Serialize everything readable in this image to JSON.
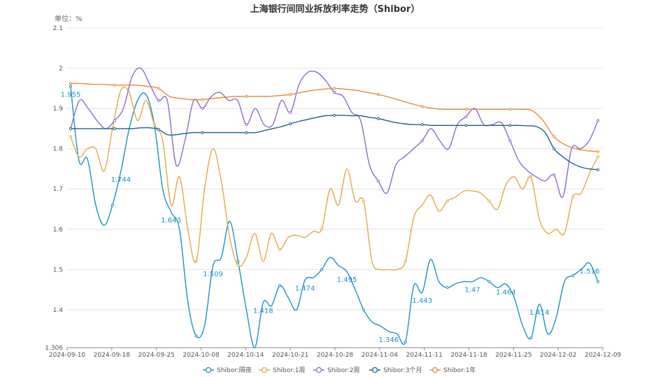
{
  "chart_data": {
    "type": "line",
    "title": "上海银行间同业拆放利率走势（Shibor）",
    "ylabel": "单位：%",
    "ylim": [
      1.306,
      2.1
    ],
    "y_ticks": [
      "1.306",
      "1.4",
      "1.5",
      "1.6",
      "1.7",
      "1.8",
      "1.9",
      "2",
      "2.1"
    ],
    "x_ticks": [
      "2024-09-10",
      "2024-09-18",
      "2024-09-25",
      "2024-10-08",
      "2024-10-14",
      "2024-10-21",
      "2024-10-28",
      "2024-11-04",
      "2024-11-11",
      "2024-11-18",
      "2024-11-25",
      "2024-12-02",
      "2024-12-09"
    ],
    "grid": true,
    "legend_position": "bottom",
    "series": [
      {
        "name": "Shibor:隔夜",
        "color": "#1a93c4",
        "show_labels": true,
        "values": [
          1.955,
          1.77,
          1.775,
          1.66,
          1.61,
          1.66,
          1.744,
          1.85,
          1.92,
          1.935,
          1.86,
          1.7,
          1.643,
          1.6,
          1.42,
          1.335,
          1.36,
          1.509,
          1.53,
          1.62,
          1.52,
          1.4,
          1.306,
          1.418,
          1.41,
          1.46,
          1.43,
          1.4,
          1.474,
          1.48,
          1.5,
          1.53,
          1.51,
          1.495,
          1.45,
          1.4,
          1.37,
          1.36,
          1.346,
          1.34,
          1.32,
          1.46,
          1.443,
          1.525,
          1.47,
          1.455,
          1.465,
          1.47,
          1.47,
          1.48,
          1.47,
          1.455,
          1.464,
          1.43,
          1.36,
          1.33,
          1.414,
          1.34,
          1.38,
          1.47,
          1.485,
          1.5,
          1.516,
          1.47
        ],
        "labels": {
          "0": "1.955",
          "6": "1.744",
          "12": "1.643",
          "17": "1.509",
          "23": "1.418",
          "28": "1.474",
          "33": "1.495",
          "38": "1.346",
          "42": "1.443",
          "48": "1.47",
          "52": "1.464",
          "56": "1.414",
          "62": "1.516"
        }
      },
      {
        "name": "Shibor:1周",
        "color": "#e0ab45",
        "values": [
          1.83,
          1.78,
          1.8,
          1.8,
          1.745,
          1.85,
          1.945,
          1.94,
          1.87,
          1.92,
          1.86,
          1.82,
          1.66,
          1.73,
          1.6,
          1.52,
          1.7,
          1.8,
          1.72,
          1.58,
          1.51,
          1.53,
          1.59,
          1.52,
          1.59,
          1.55,
          1.58,
          1.585,
          1.58,
          1.595,
          1.6,
          1.7,
          1.66,
          1.75,
          1.67,
          1.67,
          1.52,
          1.5,
          1.5,
          1.5,
          1.52,
          1.63,
          1.66,
          1.685,
          1.645,
          1.67,
          1.68,
          1.695,
          1.695,
          1.69,
          1.67,
          1.65,
          1.71,
          1.73,
          1.7,
          1.73,
          1.625,
          1.59,
          1.6,
          1.59,
          1.68,
          1.69,
          1.74,
          1.78
        ]
      },
      {
        "name": "Shibor:2周",
        "color": "#8f6bcc",
        "values": [
          1.85,
          1.92,
          1.9,
          1.87,
          1.85,
          1.87,
          1.9,
          1.98,
          2.0,
          1.96,
          1.92,
          1.92,
          1.76,
          1.82,
          1.92,
          1.9,
          1.93,
          1.94,
          1.92,
          1.92,
          1.86,
          1.9,
          1.86,
          1.86,
          1.92,
          1.89,
          1.96,
          1.99,
          1.99,
          1.97,
          1.94,
          1.93,
          1.89,
          1.87,
          1.76,
          1.72,
          1.69,
          1.76,
          1.78,
          1.8,
          1.82,
          1.85,
          1.82,
          1.8,
          1.86,
          1.88,
          1.9,
          1.86,
          1.86,
          1.865,
          1.82,
          1.77,
          1.745,
          1.73,
          1.72,
          1.735,
          1.68,
          1.8,
          1.8,
          1.82,
          1.87
        ]
      },
      {
        "name": "Shibor:3个月",
        "color": "#1f5f8b",
        "values": [
          1.85,
          1.85,
          1.85,
          1.85,
          1.85,
          1.85,
          1.85,
          1.85,
          1.852,
          1.852,
          1.848,
          1.835,
          1.835,
          1.838,
          1.84,
          1.84,
          1.84,
          1.84,
          1.84,
          1.84,
          1.84,
          1.84,
          1.845,
          1.85,
          1.855,
          1.862,
          1.868,
          1.873,
          1.878,
          1.882,
          1.883,
          1.883,
          1.882,
          1.882,
          1.878,
          1.875,
          1.87,
          1.865,
          1.862,
          1.86,
          1.86,
          1.858,
          1.858,
          1.858,
          1.858,
          1.858,
          1.858,
          1.858,
          1.858,
          1.858,
          1.858,
          1.858,
          1.857,
          1.855,
          1.84,
          1.8,
          1.78,
          1.765,
          1.755,
          1.75,
          1.748
        ]
      },
      {
        "name": "Shibor:1年",
        "color": "#e98a38",
        "values": [
          1.962,
          1.962,
          1.96,
          1.96,
          1.958,
          1.958,
          1.958,
          1.955,
          1.95,
          1.93,
          1.925,
          1.922,
          1.922,
          1.925,
          1.928,
          1.93,
          1.93,
          1.93,
          1.93,
          1.932,
          1.935,
          1.94,
          1.945,
          1.948,
          1.95,
          1.948,
          1.945,
          1.94,
          1.935,
          1.928,
          1.92,
          1.912,
          1.905,
          1.9,
          1.898,
          1.898,
          1.898,
          1.898,
          1.898,
          1.898,
          1.898,
          1.898,
          1.895,
          1.87,
          1.83,
          1.81,
          1.8,
          1.795,
          1.793
        ]
      }
    ]
  }
}
